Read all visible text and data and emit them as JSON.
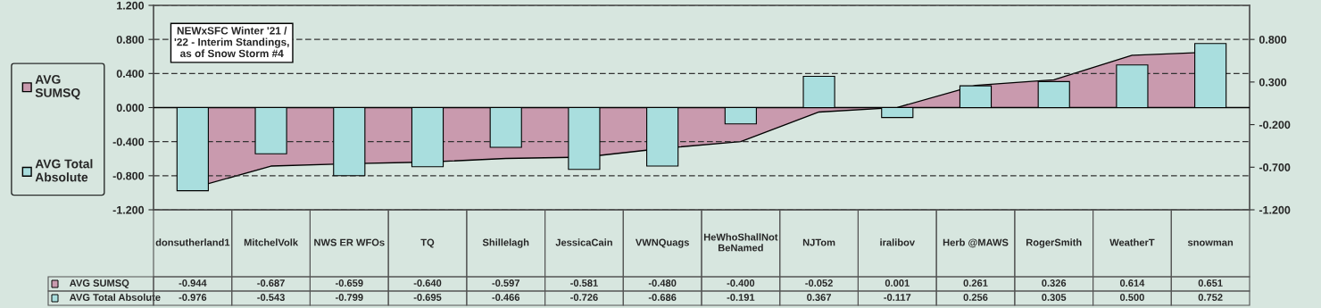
{
  "chart_data": {
    "type": "bar",
    "title": "NEWxSFC Winter '21 / '22 - Interim Standings, as of Snow Storm #4",
    "categories": [
      "donsutherland1",
      "MitchelVolk",
      "NWS ER WFOs",
      "TQ",
      "Shillelagh",
      "JessicaCain",
      "VWNQuags",
      "HeWhoShallNotBeNamed",
      "NJTom",
      "iralibov",
      "Herb @MAWS",
      "RogerSmith",
      "WeatherT",
      "snowman"
    ],
    "series": [
      {
        "name": "AVG SUMSQ",
        "type": "area",
        "axis": "y2",
        "color": "#c99aae",
        "values": [
          -0.944,
          -0.687,
          -0.659,
          -0.64,
          -0.597,
          -0.581,
          -0.48,
          -0.4,
          -0.052,
          0.001,
          0.261,
          0.326,
          0.614,
          0.651
        ],
        "value_labels": [
          "-0.944",
          "-0.687",
          "-0.659",
          "-0.640",
          "-0.597",
          "-0.581",
          "-0.480",
          "-0.400",
          "-0.052",
          "0.001",
          "0.261",
          "0.326",
          "0.614",
          "0.651"
        ]
      },
      {
        "name": "AVG Total Absolute",
        "color": "#a9dede",
        "values": [
          -0.976,
          -0.543,
          -0.799,
          -0.695,
          -0.466,
          -0.726,
          -0.686,
          -0.191,
          0.367,
          -0.117,
          0.256,
          0.305,
          0.5,
          0.752
        ],
        "value_labels": [
          "-0.976",
          "-0.543",
          "-0.799",
          "-0.695",
          "-0.466",
          "-0.726",
          "-0.686",
          "-0.191",
          "0.367",
          "-0.117",
          "0.256",
          "0.305",
          "0.500",
          "0.752"
        ]
      }
    ],
    "ylim": [
      -1.2,
      1.2
    ],
    "yticks": [
      {
        "value": -1.2,
        "label": "-1.200"
      },
      {
        "value": -0.8,
        "label": "-0.800"
      },
      {
        "value": -0.4,
        "label": "-0.400"
      },
      {
        "value": 0.0,
        "label": "0.000"
      },
      {
        "value": 0.4,
        "label": "0.400"
      },
      {
        "value": 0.8,
        "label": "0.800"
      },
      {
        "value": 1.2,
        "label": "1.200"
      }
    ],
    "y2lim": [
      -1.2,
      1.2
    ],
    "y2ticks": [
      {
        "value": -1.2,
        "label": "-1.200"
      },
      {
        "value": -0.7,
        "label": "-0.700"
      },
      {
        "value": -0.2,
        "label": "-0.200"
      },
      {
        "value": 0.3,
        "label": "0.300"
      },
      {
        "value": 0.8,
        "label": "0.800"
      }
    ],
    "grid": "y",
    "legend": "left"
  }
}
